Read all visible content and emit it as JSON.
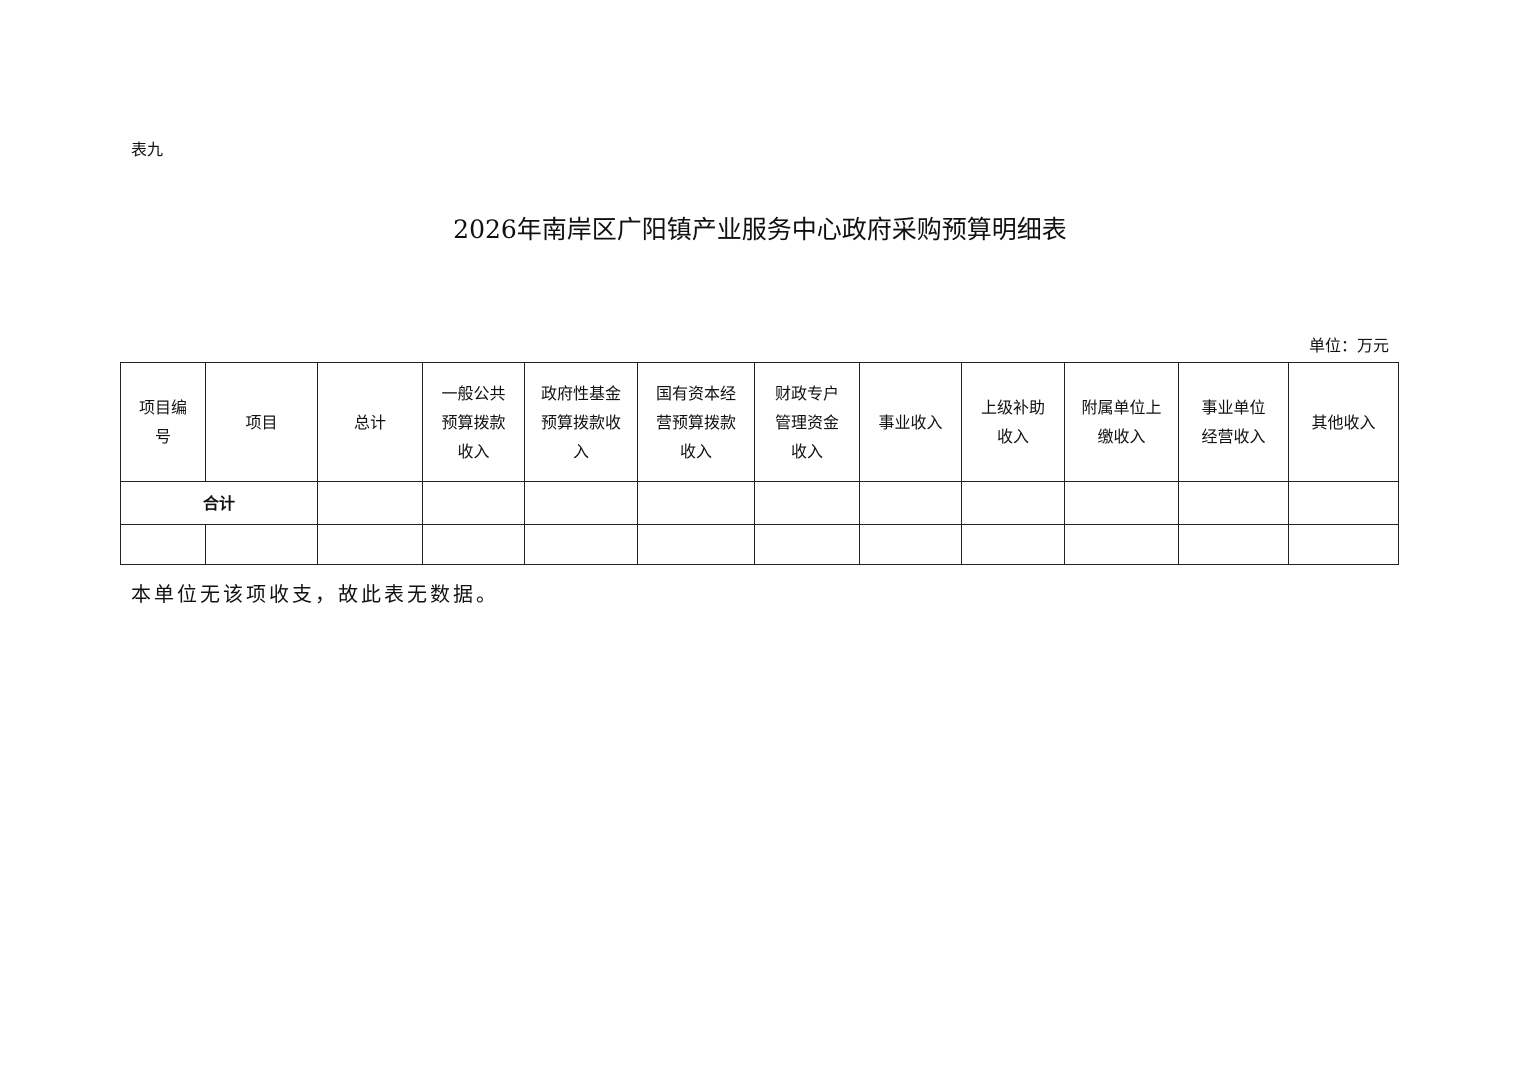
{
  "table_label": "表九",
  "title": "2026年南岸区广阳镇产业服务中心政府采购预算明细表",
  "unit": "单位：万元",
  "headers": [
    "项目编\n号",
    "项目",
    "总计",
    "一般公共\n预算拨款\n收入",
    "政府性基金\n预算拨款收\n入",
    "国有资本经\n营预算拨款\n收入",
    "财政专户\n管理资金\n收入",
    "事业收入",
    "上级补助\n收入",
    "附属单位上\n缴收入",
    "事业单位\n经营收入",
    "其他收入"
  ],
  "total_row": {
    "label": "合计"
  },
  "note": "本单位无该项收支，故此表无数据。"
}
